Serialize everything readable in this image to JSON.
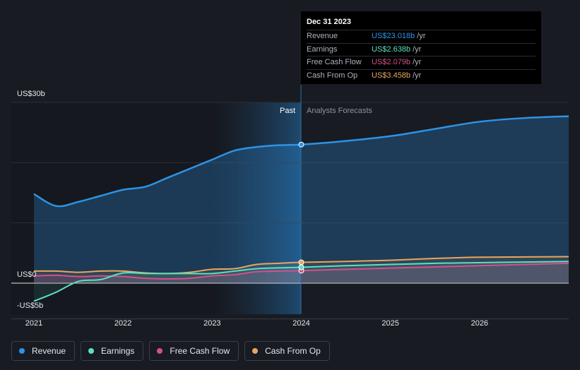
{
  "chart_data": {
    "type": "area",
    "x_axis_ticks": [
      "2021",
      "2022",
      "2023",
      "2024",
      "2025",
      "2026"
    ],
    "y_axis_labels": {
      "top": "US$30b",
      "zero": "US$0",
      "bottom": "-US$5b"
    },
    "ylim": [
      -5,
      30
    ],
    "divider_labels": {
      "past": "Past",
      "forecast": "Analysts Forecasts"
    },
    "series": [
      {
        "name": "Revenue",
        "color": "#2e93e6",
        "x": [
          2021.0,
          2021.25,
          2021.5,
          2021.75,
          2022.0,
          2022.25,
          2022.5,
          2022.75,
          2023.0,
          2023.25,
          2023.5,
          2023.75,
          2024.0,
          2024.5,
          2025.0,
          2025.5,
          2026.0,
          2026.5,
          2027.0
        ],
        "values": [
          14.8,
          12.8,
          13.5,
          14.5,
          15.5,
          16.0,
          17.5,
          19.0,
          20.5,
          22.0,
          22.6,
          22.9,
          23.0,
          23.6,
          24.4,
          25.6,
          26.8,
          27.4,
          27.7
        ]
      },
      {
        "name": "Earnings",
        "color": "#5ce0c0",
        "x": [
          2021.0,
          2021.25,
          2021.5,
          2021.75,
          2022.0,
          2022.25,
          2022.5,
          2022.75,
          2023.0,
          2023.25,
          2023.5,
          2023.75,
          2024.0,
          2024.5,
          2025.0,
          2025.5,
          2026.0,
          2026.5,
          2027.0
        ],
        "values": [
          -3.0,
          -1.5,
          0.3,
          0.6,
          1.7,
          1.6,
          1.6,
          1.6,
          1.6,
          2.0,
          2.4,
          2.55,
          2.638,
          2.9,
          3.1,
          3.3,
          3.4,
          3.5,
          3.6
        ]
      },
      {
        "name": "Free Cash Flow",
        "color": "#d4508a",
        "x": [
          2021.0,
          2021.25,
          2021.5,
          2021.75,
          2022.0,
          2022.25,
          2022.5,
          2022.75,
          2023.0,
          2023.25,
          2023.5,
          2023.75,
          2024.0,
          2024.5,
          2025.0,
          2025.5,
          2026.0,
          2026.5,
          2027.0
        ],
        "values": [
          1.2,
          1.3,
          1.1,
          1.2,
          1.1,
          0.8,
          0.7,
          0.8,
          1.2,
          1.4,
          1.9,
          2.0,
          2.079,
          2.3,
          2.5,
          2.7,
          2.9,
          3.1,
          3.3
        ]
      },
      {
        "name": "Cash From Op",
        "color": "#e8a75c",
        "x": [
          2021.0,
          2021.25,
          2021.5,
          2021.75,
          2022.0,
          2022.25,
          2022.5,
          2022.75,
          2023.0,
          2023.25,
          2023.5,
          2023.75,
          2024.0,
          2024.5,
          2025.0,
          2025.5,
          2026.0,
          2026.5,
          2027.0
        ],
        "values": [
          2.0,
          2.0,
          1.8,
          2.0,
          2.0,
          1.7,
          1.6,
          1.8,
          2.3,
          2.4,
          3.1,
          3.3,
          3.458,
          3.6,
          3.8,
          4.1,
          4.3,
          4.35,
          4.4
        ]
      }
    ],
    "tooltip": {
      "date": "Dec 31 2023",
      "rows": [
        {
          "label": "Revenue",
          "value": "US$23.018b",
          "unit": "/yr",
          "color": "#2e93e6"
        },
        {
          "label": "Earnings",
          "value": "US$2.638b",
          "unit": "/yr",
          "color": "#5ce0c0"
        },
        {
          "label": "Free Cash Flow",
          "value": "US$2.079b",
          "unit": "/yr",
          "color": "#d4508a"
        },
        {
          "label": "Cash From Op",
          "value": "US$3.458b",
          "unit": "/yr",
          "color": "#e8a75c"
        }
      ]
    }
  },
  "legend": [
    {
      "label": "Revenue",
      "color": "#2e93e6"
    },
    {
      "label": "Earnings",
      "color": "#5ce0c0"
    },
    {
      "label": "Free Cash Flow",
      "color": "#d4508a"
    },
    {
      "label": "Cash From Op",
      "color": "#e8a75c"
    }
  ]
}
